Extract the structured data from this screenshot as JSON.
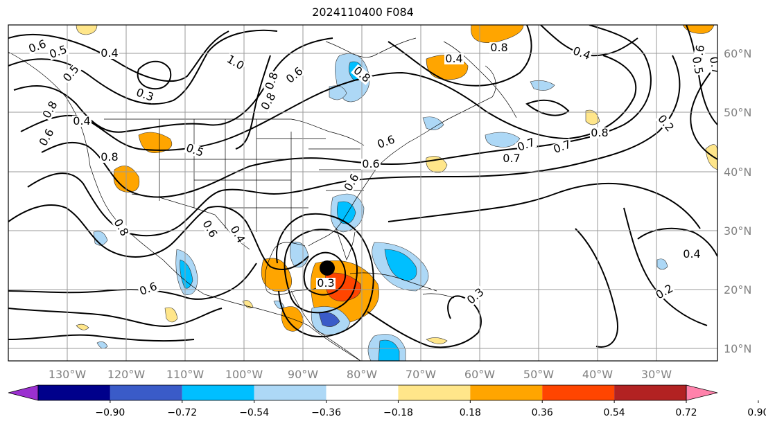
{
  "title": "2024110400 F084",
  "map": {
    "lon_ticks": [
      "130°W",
      "120°W",
      "110°W",
      "100°W",
      "90°W",
      "80°W",
      "70°W",
      "60°W",
      "50°W",
      "40°W",
      "30°W"
    ],
    "lat_ticks": [
      "60°N",
      "50°N",
      "40°N",
      "30°N",
      "20°N",
      "10°N"
    ],
    "contour_labels": [
      "0.6",
      "0.5",
      "0.4",
      "1.0",
      "0.8",
      "0.6",
      "0.3",
      "0.5",
      "0.8",
      "0.4",
      "0.6",
      "0.8",
      "0.5",
      "0.8",
      "0.6",
      "0.6",
      "0.6",
      "0.8",
      "0.4",
      "0.7",
      "0.8",
      "0.4",
      "0.7",
      "0.8",
      "0.7",
      "0.6",
      "0.2",
      "0.8",
      "0.4",
      "0.3",
      "0.3",
      "0.4",
      "0.2",
      "0.5",
      "0.7",
      "0.6",
      "0.6"
    ],
    "storm_marker": "tropical-cyclone-center"
  },
  "colorbar": {
    "ticks": [
      "−0.90",
      "−0.72",
      "−0.54",
      "−0.36",
      "−0.18",
      "0.18",
      "0.36",
      "0.54",
      "0.72",
      "0.90"
    ],
    "colors": [
      "#9b30d0",
      "#00008b",
      "#3a5bc8",
      "#00bfff",
      "#add8f6",
      "#ffffff",
      "#ffe68a",
      "#ffa500",
      "#ff4500",
      "#b22222",
      "#ff82ab"
    ]
  }
}
